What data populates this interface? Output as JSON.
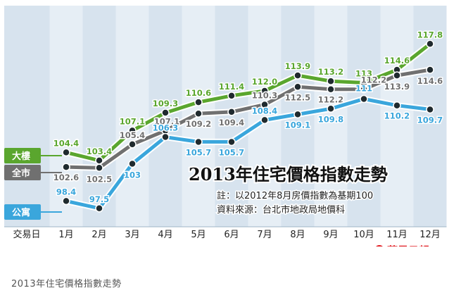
{
  "chart_data": {
    "type": "line",
    "title": "2013年住宅價格指數走勢",
    "notes": [
      "註：以2012年8月房價指數為基期100",
      "資料來源：台北市地政局地價科"
    ],
    "x_axis_label": "交易日",
    "categories": [
      "1月",
      "2月",
      "3月",
      "4月",
      "5月",
      "6月",
      "7月",
      "8月",
      "9月",
      "10月",
      "11月",
      "12月"
    ],
    "ylim": [
      96,
      119
    ],
    "series": [
      {
        "name": "大樓",
        "color": "#5aa62e",
        "values": [
          104.4,
          103.4,
          107.1,
          109.3,
          110.6,
          111.4,
          112.0,
          113.9,
          113.2,
          113,
          114.6,
          117.8
        ],
        "labels": [
          "104.4",
          "103.4",
          "107.1",
          "109.3",
          "110.6",
          "111.4",
          "112.0",
          "113.9",
          "113.2",
          "113",
          "114.6",
          "117.8"
        ]
      },
      {
        "name": "全市",
        "color": "#707070",
        "values": [
          102.6,
          102.5,
          105.4,
          107.1,
          109.2,
          109.4,
          110.3,
          112.5,
          112.2,
          112.2,
          113.9,
          114.6
        ],
        "labels": [
          "102.6",
          "102.5",
          "105.4",
          "107.1",
          "109.2",
          "109.4",
          "110.3",
          "112.5",
          "112.2",
          "112.2",
          "113.9",
          "114.6"
        ]
      },
      {
        "name": "公寓",
        "color": "#3aa6dc",
        "values": [
          98.4,
          97.5,
          103,
          106.3,
          105.7,
          105.7,
          108.4,
          109.1,
          109.8,
          111,
          110.2,
          109.7
        ],
        "labels": [
          "98.4",
          "97.5",
          "103",
          "106.3",
          "105.7",
          "105.7",
          "108.4",
          "109.1",
          "109.8",
          "111",
          "110.2",
          "109.7"
        ]
      }
    ]
  },
  "logo": {
    "text": "蘋果日報"
  },
  "caption": "2013年住宅價格指數走勢"
}
